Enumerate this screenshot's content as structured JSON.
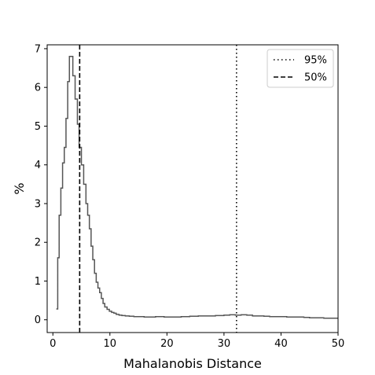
{
  "chart_data": {
    "type": "line",
    "title": "",
    "xlabel": "Mahalanobis Distance",
    "ylabel": "%",
    "xlim": [
      -1,
      50
    ],
    "ylim": [
      -0.33,
      7.1
    ],
    "xticks": [
      "0",
      "10",
      "20",
      "30",
      "40",
      "50"
    ],
    "yticks": [
      "0",
      "1",
      "2",
      "3",
      "4",
      "5",
      "6",
      "7"
    ],
    "grid": false,
    "legend_position": "top-right",
    "series": [
      {
        "style": "step",
        "color": "#555555",
        "x": [
          0.6,
          0.85,
          1.1,
          1.4,
          1.7,
          2.0,
          2.3,
          2.6,
          2.9,
          3.2,
          3.5,
          3.9,
          4.3,
          4.6,
          5.0,
          5.4,
          5.8,
          6.1,
          6.4,
          6.7,
          7.0,
          7.3,
          7.6,
          7.9,
          8.2,
          8.5,
          8.8,
          9.1,
          9.5,
          9.9,
          10.3,
          10.7,
          11.1,
          11.6,
          12.1,
          12.7,
          13.4,
          14.2,
          15.0,
          16.0,
          17.0,
          18.0,
          19.5,
          21.0,
          22.5,
          24.0,
          25.5,
          27.0,
          28.5,
          30.0,
          31.0,
          32.0,
          33.0,
          34.0,
          35.0,
          36.0,
          37.0,
          38.0,
          39.5,
          41.0,
          42.5,
          44.0,
          45.0,
          46.0,
          47.5,
          49.0,
          50.0
        ],
        "y": [
          0.28,
          1.6,
          2.7,
          3.4,
          4.05,
          4.45,
          5.2,
          6.15,
          6.8,
          6.8,
          6.3,
          5.7,
          5.05,
          4.45,
          4.0,
          3.5,
          3.0,
          2.7,
          2.35,
          1.9,
          1.55,
          1.2,
          0.97,
          0.82,
          0.7,
          0.55,
          0.42,
          0.33,
          0.27,
          0.22,
          0.19,
          0.17,
          0.14,
          0.12,
          0.11,
          0.1,
          0.09,
          0.08,
          0.08,
          0.07,
          0.07,
          0.08,
          0.07,
          0.07,
          0.08,
          0.09,
          0.1,
          0.1,
          0.11,
          0.12,
          0.13,
          0.12,
          0.13,
          0.12,
          0.1,
          0.1,
          0.09,
          0.08,
          0.08,
          0.07,
          0.07,
          0.06,
          0.05,
          0.05,
          0.04,
          0.04,
          0.04
        ]
      }
    ],
    "reference_lines": [
      {
        "name": "95%",
        "x": 32.2,
        "dash": "dotted",
        "color": "#000000"
      },
      {
        "name": "50%",
        "x": 4.7,
        "dash": "dashed",
        "color": "#000000"
      }
    ]
  }
}
